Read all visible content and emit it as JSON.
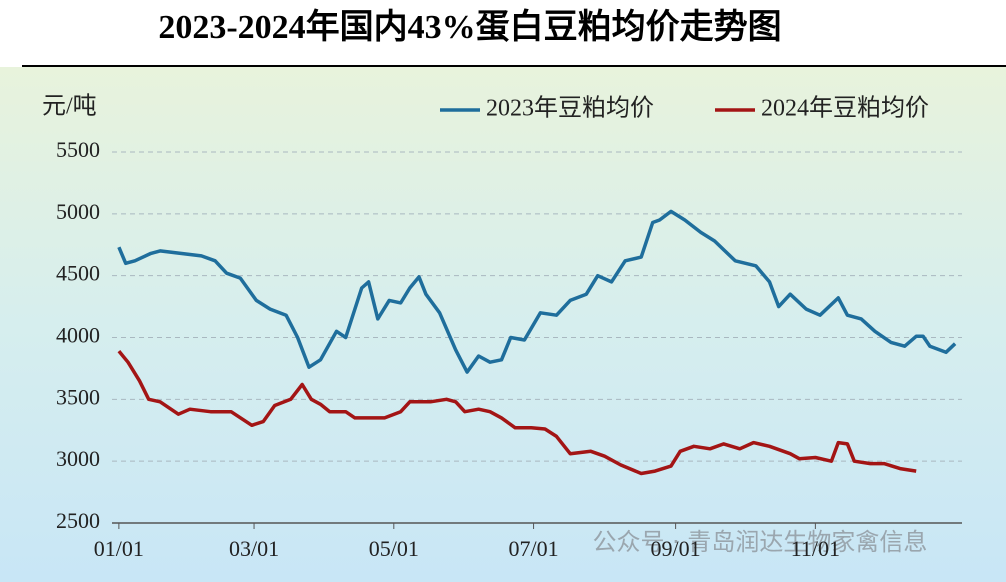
{
  "chart_data": {
    "type": "line",
    "title": "2023-2024年国内43%蛋白豆粕均价走势图",
    "y_label": "元/吨",
    "watermark": "公众号 · 青岛润达生物家禽信息",
    "xlim": [
      -2,
      369
    ],
    "xticks": [
      {
        "value": 1,
        "label": "01/01"
      },
      {
        "value": 60,
        "label": "03/01"
      },
      {
        "value": 121,
        "label": "05/01"
      },
      {
        "value": 182,
        "label": "07/01"
      },
      {
        "value": 244,
        "label": "09/01"
      },
      {
        "value": 305,
        "label": "11/01"
      }
    ],
    "ylim": [
      2500,
      5500
    ],
    "yticks": [
      2500,
      3000,
      3500,
      4000,
      4500,
      5000,
      5500
    ],
    "grid": true,
    "legend": "top-right",
    "series": [
      {
        "name": "2023年豆粕均价",
        "color": "#1f6e9c",
        "x": [
          1,
          4,
          8,
          15,
          19,
          28,
          37,
          43,
          48,
          54,
          61,
          67,
          74,
          79,
          84,
          89,
          96,
          100,
          107,
          110,
          114,
          119,
          124,
          128,
          132,
          135,
          141,
          148,
          153,
          158,
          163,
          168,
          172,
          178,
          185,
          192,
          198,
          205,
          210,
          216,
          222,
          229,
          234,
          237,
          242,
          248,
          255,
          261,
          270,
          279,
          285,
          289,
          294,
          301,
          307,
          315,
          319,
          325,
          331,
          338,
          344,
          349,
          352,
          355,
          362,
          366
        ],
        "values": [
          4730,
          4600,
          4620,
          4680,
          4700,
          4680,
          4660,
          4620,
          4520,
          4480,
          4300,
          4230,
          4180,
          4000,
          3760,
          3820,
          4050,
          4000,
          4400,
          4450,
          4150,
          4300,
          4280,
          4400,
          4490,
          4350,
          4200,
          3900,
          3720,
          3850,
          3800,
          3820,
          4000,
          3980,
          4200,
          4180,
          4300,
          4350,
          4500,
          4450,
          4620,
          4650,
          4930,
          4950,
          5020,
          4950,
          4850,
          4780,
          4620,
          4580,
          4450,
          4250,
          4350,
          4230,
          4180,
          4320,
          4180,
          4150,
          4050,
          3960,
          3930,
          4010,
          4010,
          3930,
          3880,
          3950
        ]
      },
      {
        "name": "2024年豆粕均价",
        "color": "#a31515",
        "x": [
          1,
          5,
          10,
          14,
          19,
          27,
          32,
          41,
          50,
          59,
          64,
          69,
          76,
          81,
          85,
          89,
          93,
          100,
          104,
          111,
          117,
          124,
          128,
          137,
          144,
          148,
          152,
          158,
          163,
          168,
          174,
          181,
          187,
          192,
          198,
          207,
          213,
          220,
          229,
          235,
          242,
          246,
          252,
          259,
          265,
          272,
          278,
          285,
          294,
          298,
          305,
          312,
          315,
          319,
          322,
          329,
          335,
          342,
          349
        ],
        "values": [
          3890,
          3800,
          3650,
          3500,
          3480,
          3380,
          3420,
          3400,
          3400,
          3290,
          3320,
          3450,
          3500,
          3620,
          3500,
          3460,
          3400,
          3400,
          3350,
          3350,
          3350,
          3400,
          3480,
          3480,
          3500,
          3480,
          3400,
          3420,
          3400,
          3350,
          3270,
          3270,
          3260,
          3200,
          3060,
          3080,
          3040,
          2970,
          2900,
          2920,
          2960,
          3080,
          3120,
          3100,
          3140,
          3100,
          3150,
          3120,
          3060,
          3020,
          3030,
          3000,
          3150,
          3140,
          3000,
          2980,
          2980,
          2940,
          2920
        ]
      }
    ]
  }
}
